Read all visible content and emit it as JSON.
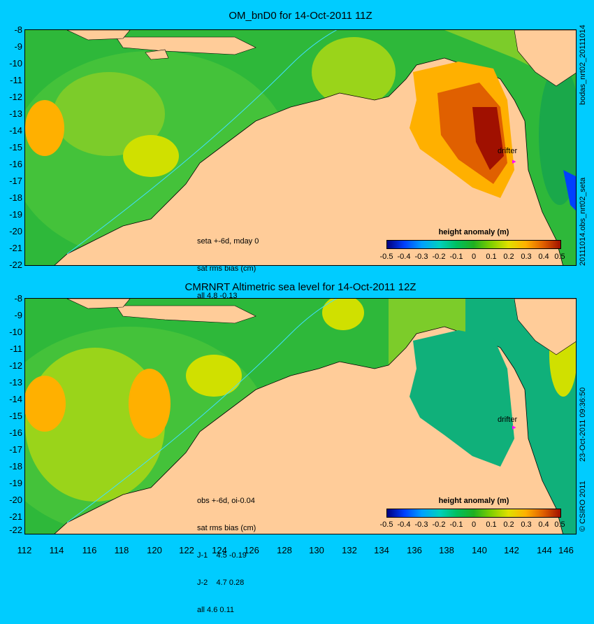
{
  "top": {
    "title": "OM_bnD0 for 14-Oct-2011 11Z",
    "side_label_top": "bodas_nrt02_20111014",
    "side_label_bottom": "20111014.obs_nrt02_seta",
    "stats_lines": [
      "seta +-6d, mday 0",
      "sat rms bias (cm)",
      "all 4.8 -0.13"
    ],
    "drifter": "drifter",
    "colorbar_title": "height anomaly (m)"
  },
  "bottom": {
    "title": "CMRNRT Altimetric sea level  for 14-Oct-2011 12Z",
    "side_label_top": "23-Oct-2011 09:36:50",
    "side_label_bottom": "© CSIRO 2011",
    "stats_lines": [
      "obs +-6d, oi-0.04",
      "sat rms bias (cm)",
      "J-1    4.5 -0.19",
      "J-2    4.7 0.28",
      "all 4.6 0.11"
    ],
    "drifter": "drifter",
    "colorbar_title": "height anomaly (m)"
  },
  "y_ticks": [
    "-8",
    "-9",
    "-10",
    "-11",
    "-12",
    "-13",
    "-14",
    "-15",
    "-16",
    "-17",
    "-18",
    "-19",
    "-20",
    "-21",
    "-22"
  ],
  "x_ticks": [
    "112",
    "114",
    "116",
    "118",
    "120",
    "122",
    "124",
    "126",
    "128",
    "130",
    "132",
    "134",
    "136",
    "138",
    "140",
    "142",
    "144",
    "146"
  ],
  "colorbar_ticks": [
    "-0.5",
    "-0.4",
    "-0.3",
    "-0.2",
    "-0.1",
    "0",
    "0.1",
    "0.2",
    "0.3",
    "0.4",
    "0.5"
  ],
  "colors": {
    "background": "#00ccff",
    "land": "#ffcc99",
    "sea_base": "#22bb33",
    "colormap": [
      "#000080",
      "#0040ff",
      "#00a0ff",
      "#00d0c0",
      "#00c060",
      "#20b020",
      "#80d000",
      "#e0e000",
      "#ffb000",
      "#e06000",
      "#a01000"
    ]
  }
}
